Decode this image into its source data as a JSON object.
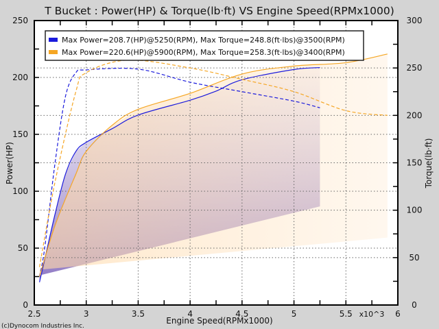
{
  "chart_data": {
    "type": "line",
    "title": "T Bucket : Power(HP) & Torque(lb·ft) VS Engine Speed(RPMx1000)",
    "xlabel": "Engine Speed(RPMx1000)",
    "xscale_label": "x10^3",
    "ylabel_left": "Power(HP)",
    "ylabel_right": "Torque(lb·ft)",
    "xlim": [
      2.5,
      6
    ],
    "ylim_left": [
      0,
      250
    ],
    "ylim_right": [
      0,
      300
    ],
    "xticks": [
      "2.5",
      "3",
      "3.5",
      "4",
      "4.5",
      "5",
      "5.5",
      "6"
    ],
    "yticks_left": [
      "0",
      "50",
      "100",
      "150",
      "200",
      "250"
    ],
    "yticks_right": [
      "0",
      "50",
      "100",
      "150",
      "200",
      "250",
      "300"
    ],
    "grid": true,
    "legend_position": "top-left",
    "series": [
      {
        "name": "Max Power=208.7(HP)@5250(RPM), Max Torque=248.8(ft·lbs)@3500(RPM)",
        "color": "#1a1adc",
        "power": {
          "x": [
            2.55,
            2.6,
            2.7,
            2.8,
            2.9,
            3.0,
            3.25,
            3.5,
            4.0,
            4.25,
            4.5,
            5.0,
            5.25
          ],
          "y": [
            20,
            40,
            80,
            115,
            135,
            143,
            155,
            167,
            180,
            188,
            198,
            207,
            208.7
          ]
        },
        "torque": {
          "x": [
            2.55,
            2.6,
            2.7,
            2.8,
            2.9,
            3.0,
            3.5,
            4.0,
            4.5,
            5.0,
            5.25
          ],
          "y": [
            30,
            60,
            150,
            220,
            245,
            248,
            248.8,
            235,
            225,
            215,
            208
          ]
        }
      },
      {
        "name": "Max Power=220.6(HP)@5900(RPM), Max Torque=258.3(ft·lbs)@3400(RPM)",
        "color": "#f5a623",
        "power": {
          "x": [
            2.55,
            2.7,
            2.9,
            3.0,
            3.25,
            3.5,
            4.0,
            4.5,
            5.0,
            5.5,
            5.9
          ],
          "y": [
            25,
            70,
            115,
            135,
            158,
            172,
            186,
            203,
            210,
            213,
            220.6
          ]
        },
        "torque": {
          "x": [
            2.55,
            2.7,
            2.9,
            3.0,
            3.4,
            4.0,
            4.5,
            5.0,
            5.5,
            5.9
          ],
          "y": [
            40,
            130,
            225,
            245,
            258.3,
            250,
            238,
            225,
            205,
            200
          ]
        }
      }
    ]
  },
  "footer": {
    "copyright": "(c)Dynocom Industries Inc."
  }
}
